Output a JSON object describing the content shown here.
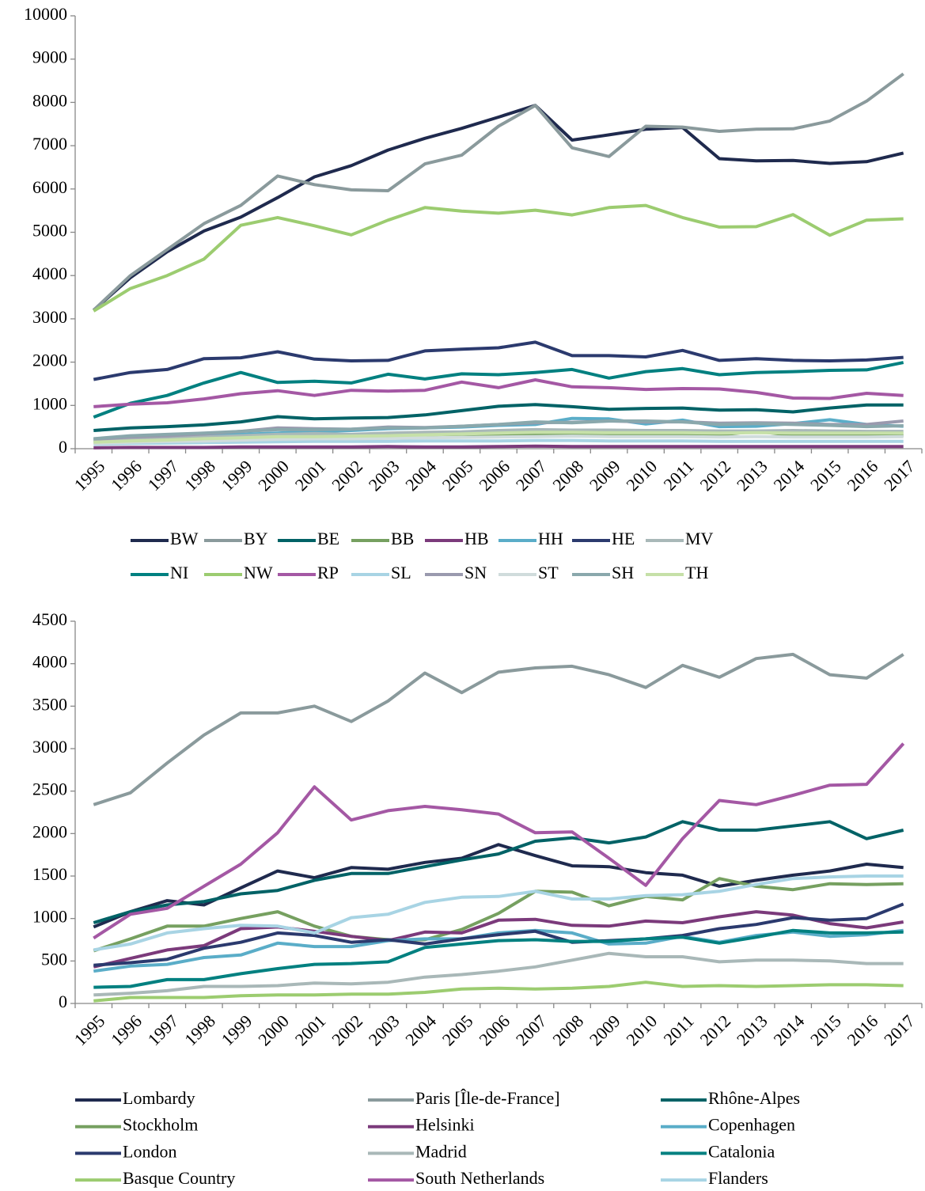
{
  "chart_data": [
    {
      "type": "line",
      "categories": [
        "1995",
        "1996",
        "1997",
        "1998",
        "1999",
        "2000",
        "2001",
        "2002",
        "2003",
        "2004",
        "2005",
        "2006",
        "2007",
        "2008",
        "2009",
        "2010",
        "2011",
        "2012",
        "2013",
        "2014",
        "2015",
        "2016",
        "2017"
      ],
      "ylim": [
        0,
        10000
      ],
      "yticks": [
        0,
        1000,
        2000,
        3000,
        4000,
        5000,
        6000,
        7000,
        8000,
        9000,
        10000
      ],
      "series": [
        {
          "name": "BW",
          "color": "#1f2a4e",
          "values": [
            3200,
            3950,
            4550,
            5030,
            5350,
            5800,
            6280,
            6540,
            6900,
            7170,
            7400,
            7660,
            7930,
            7130,
            7250,
            7380,
            7420,
            6700,
            6650,
            6660,
            6590,
            6630,
            6830
          ]
        },
        {
          "name": "BY",
          "color": "#8a9a9c",
          "values": [
            3200,
            4000,
            4600,
            5200,
            5620,
            6300,
            6100,
            5980,
            5960,
            6580,
            6780,
            7450,
            7930,
            6950,
            6750,
            7450,
            7430,
            7330,
            7380,
            7390,
            7570,
            8030,
            8660
          ]
        },
        {
          "name": "BE",
          "color": "#006266",
          "values": [
            420,
            480,
            510,
            550,
            620,
            740,
            690,
            710,
            720,
            780,
            880,
            980,
            1020,
            970,
            910,
            930,
            940,
            890,
            900,
            850,
            940,
            1010,
            1010
          ]
        },
        {
          "name": "BB",
          "color": "#76a060",
          "values": [
            150,
            180,
            200,
            220,
            240,
            260,
            250,
            250,
            260,
            260,
            270,
            300,
            320,
            350,
            330,
            310,
            310,
            320,
            400,
            310,
            320,
            310,
            310
          ]
        },
        {
          "name": "HB",
          "color": "#7b3a7b",
          "values": [
            20,
            30,
            30,
            30,
            40,
            40,
            40,
            40,
            50,
            40,
            40,
            50,
            60,
            50,
            50,
            50,
            50,
            50,
            50,
            50,
            50,
            50,
            50
          ]
        },
        {
          "name": "HH",
          "color": "#5aadc8",
          "values": [
            200,
            280,
            290,
            300,
            330,
            360,
            400,
            420,
            460,
            480,
            500,
            540,
            560,
            700,
            690,
            570,
            660,
            510,
            520,
            580,
            670,
            560,
            520
          ]
        },
        {
          "name": "HE",
          "color": "#2b3a6e",
          "values": [
            1600,
            1760,
            1830,
            2080,
            2100,
            2240,
            2070,
            2030,
            2040,
            2260,
            2300,
            2330,
            2460,
            2150,
            2150,
            2120,
            2270,
            2040,
            2080,
            2040,
            2030,
            2050,
            2110
          ]
        },
        {
          "name": "MV",
          "color": "#a9b8b8",
          "values": [
            200,
            230,
            250,
            270,
            300,
            330,
            350,
            330,
            360,
            380,
            390,
            420,
            440,
            430,
            430,
            420,
            420,
            410,
            410,
            420,
            410,
            400,
            400
          ]
        },
        {
          "name": "NI",
          "color": "#008080",
          "values": [
            730,
            1050,
            1230,
            1520,
            1760,
            1530,
            1560,
            1520,
            1720,
            1610,
            1730,
            1710,
            1760,
            1830,
            1630,
            1780,
            1850,
            1710,
            1760,
            1780,
            1810,
            1820,
            1990
          ]
        },
        {
          "name": "NW",
          "color": "#9ccc70",
          "values": [
            3180,
            3700,
            4000,
            4380,
            5160,
            5340,
            5150,
            4940,
            5280,
            5570,
            5490,
            5440,
            5510,
            5400,
            5570,
            5620,
            5340,
            5120,
            5130,
            5410,
            4930,
            5280,
            5310
          ]
        },
        {
          "name": "RP",
          "color": "#a458a4",
          "values": [
            970,
            1030,
            1060,
            1150,
            1270,
            1340,
            1230,
            1350,
            1330,
            1350,
            1540,
            1410,
            1590,
            1430,
            1410,
            1370,
            1390,
            1380,
            1300,
            1170,
            1160,
            1280,
            1230
          ]
        },
        {
          "name": "SL",
          "color": "#a8d4e4",
          "values": [
            100,
            120,
            130,
            140,
            150,
            160,
            170,
            170,
            170,
            180,
            180,
            180,
            190,
            190,
            180,
            180,
            180,
            170,
            170,
            170,
            170,
            170,
            170
          ]
        },
        {
          "name": "SN",
          "color": "#9a9aae",
          "values": [
            220,
            270,
            300,
            340,
            400,
            480,
            460,
            450,
            500,
            490,
            520,
            560,
            600,
            610,
            640,
            620,
            620,
            590,
            600,
            590,
            560,
            560,
            640
          ]
        },
        {
          "name": "ST",
          "color": "#d0dcdc",
          "values": [
            120,
            150,
            170,
            180,
            200,
            220,
            230,
            230,
            240,
            250,
            260,
            270,
            280,
            290,
            280,
            280,
            280,
            270,
            280,
            270,
            270,
            270,
            280
          ]
        },
        {
          "name": "SH",
          "color": "#8aa8ac",
          "values": [
            230,
            300,
            330,
            360,
            400,
            440,
            440,
            450,
            480,
            480,
            520,
            560,
            620,
            600,
            640,
            640,
            620,
            560,
            580,
            560,
            540,
            510,
            530
          ]
        },
        {
          "name": "TH",
          "color": "#c6e0a8",
          "values": [
            150,
            180,
            200,
            230,
            250,
            280,
            280,
            290,
            300,
            320,
            340,
            360,
            380,
            380,
            370,
            370,
            370,
            360,
            370,
            360,
            360,
            360,
            360
          ]
        }
      ]
    },
    {
      "type": "line",
      "categories": [
        "1995",
        "1996",
        "1997",
        "1998",
        "1999",
        "2000",
        "2001",
        "2002",
        "2003",
        "2004",
        "2005",
        "2006",
        "2007",
        "2008",
        "2009",
        "2010",
        "2011",
        "2012",
        "2013",
        "2014",
        "2015",
        "2016",
        "2017"
      ],
      "ylim": [
        0,
        4500
      ],
      "yticks": [
        0,
        500,
        1000,
        1500,
        2000,
        2500,
        3000,
        3500,
        4000,
        4500
      ],
      "series": [
        {
          "name": "Lombardy",
          "color": "#1f2a4e",
          "values": [
            900,
            1080,
            1210,
            1160,
            1360,
            1560,
            1480,
            1600,
            1580,
            1660,
            1710,
            1870,
            1740,
            1620,
            1610,
            1540,
            1510,
            1380,
            1450,
            1510,
            1560,
            1640,
            1600
          ]
        },
        {
          "name": "Paris [Île-de-France]",
          "color": "#8a9a9c",
          "values": [
            2340,
            2480,
            2830,
            3160,
            3420,
            3420,
            3500,
            3320,
            3560,
            3890,
            3660,
            3900,
            3950,
            3970,
            3870,
            3720,
            3980,
            3840,
            4060,
            4110,
            3870,
            3830,
            4110
          ]
        },
        {
          "name": "Rhône-Alpes",
          "color": "#006266",
          "values": [
            950,
            1080,
            1160,
            1200,
            1290,
            1330,
            1450,
            1530,
            1530,
            1610,
            1690,
            1760,
            1910,
            1950,
            1890,
            1960,
            2140,
            2040,
            2040,
            2090,
            2140,
            1940,
            2040
          ]
        },
        {
          "name": "Stockholm",
          "color": "#76a060",
          "values": [
            620,
            760,
            910,
            910,
            1000,
            1080,
            910,
            790,
            750,
            750,
            870,
            1060,
            1320,
            1310,
            1150,
            1260,
            1220,
            1470,
            1380,
            1340,
            1410,
            1400,
            1410
          ]
        },
        {
          "name": "Helsinki",
          "color": "#7b3a7b",
          "values": [
            430,
            530,
            630,
            680,
            880,
            900,
            850,
            790,
            740,
            840,
            830,
            980,
            990,
            920,
            910,
            970,
            950,
            1020,
            1080,
            1040,
            940,
            890,
            960
          ]
        },
        {
          "name": "Copenhagen",
          "color": "#5aadc8",
          "values": [
            380,
            440,
            460,
            540,
            570,
            710,
            670,
            670,
            740,
            760,
            760,
            830,
            860,
            830,
            700,
            710,
            790,
            720,
            800,
            840,
            790,
            810,
            860
          ]
        },
        {
          "name": "London",
          "color": "#2b3a6e",
          "values": [
            450,
            480,
            520,
            650,
            720,
            830,
            800,
            720,
            750,
            700,
            760,
            810,
            850,
            720,
            740,
            760,
            800,
            880,
            930,
            1010,
            980,
            1000,
            1170
          ]
        },
        {
          "name": "Madrid",
          "color": "#a9b8b8",
          "values": [
            100,
            120,
            150,
            200,
            200,
            210,
            240,
            230,
            250,
            310,
            340,
            380,
            430,
            510,
            590,
            550,
            550,
            490,
            510,
            510,
            500,
            470,
            470
          ]
        },
        {
          "name": "Catalonia",
          "color": "#008080",
          "values": [
            190,
            200,
            280,
            280,
            350,
            410,
            460,
            470,
            490,
            660,
            700,
            740,
            750,
            730,
            730,
            760,
            780,
            710,
            780,
            860,
            830,
            830,
            840
          ]
        },
        {
          "name": "Basque Country",
          "color": "#9ccc70",
          "values": [
            30,
            70,
            70,
            70,
            90,
            100,
            100,
            110,
            110,
            130,
            170,
            180,
            170,
            180,
            200,
            250,
            200,
            210,
            200,
            210,
            220,
            220,
            210
          ]
        },
        {
          "name": "South Netherlands",
          "color": "#a458a4",
          "values": [
            770,
            1050,
            1120,
            1380,
            1640,
            2010,
            2550,
            2160,
            2270,
            2320,
            2280,
            2230,
            2010,
            2020,
            1710,
            1390,
            1940,
            2390,
            2340,
            2450,
            2570,
            2580,
            3060
          ]
        },
        {
          "name": "Flanders",
          "color": "#a8d4e4",
          "values": [
            630,
            700,
            830,
            880,
            920,
            910,
            830,
            1010,
            1050,
            1190,
            1250,
            1260,
            1320,
            1230,
            1230,
            1270,
            1280,
            1320,
            1400,
            1470,
            1490,
            1500,
            1500
          ]
        }
      ]
    }
  ]
}
